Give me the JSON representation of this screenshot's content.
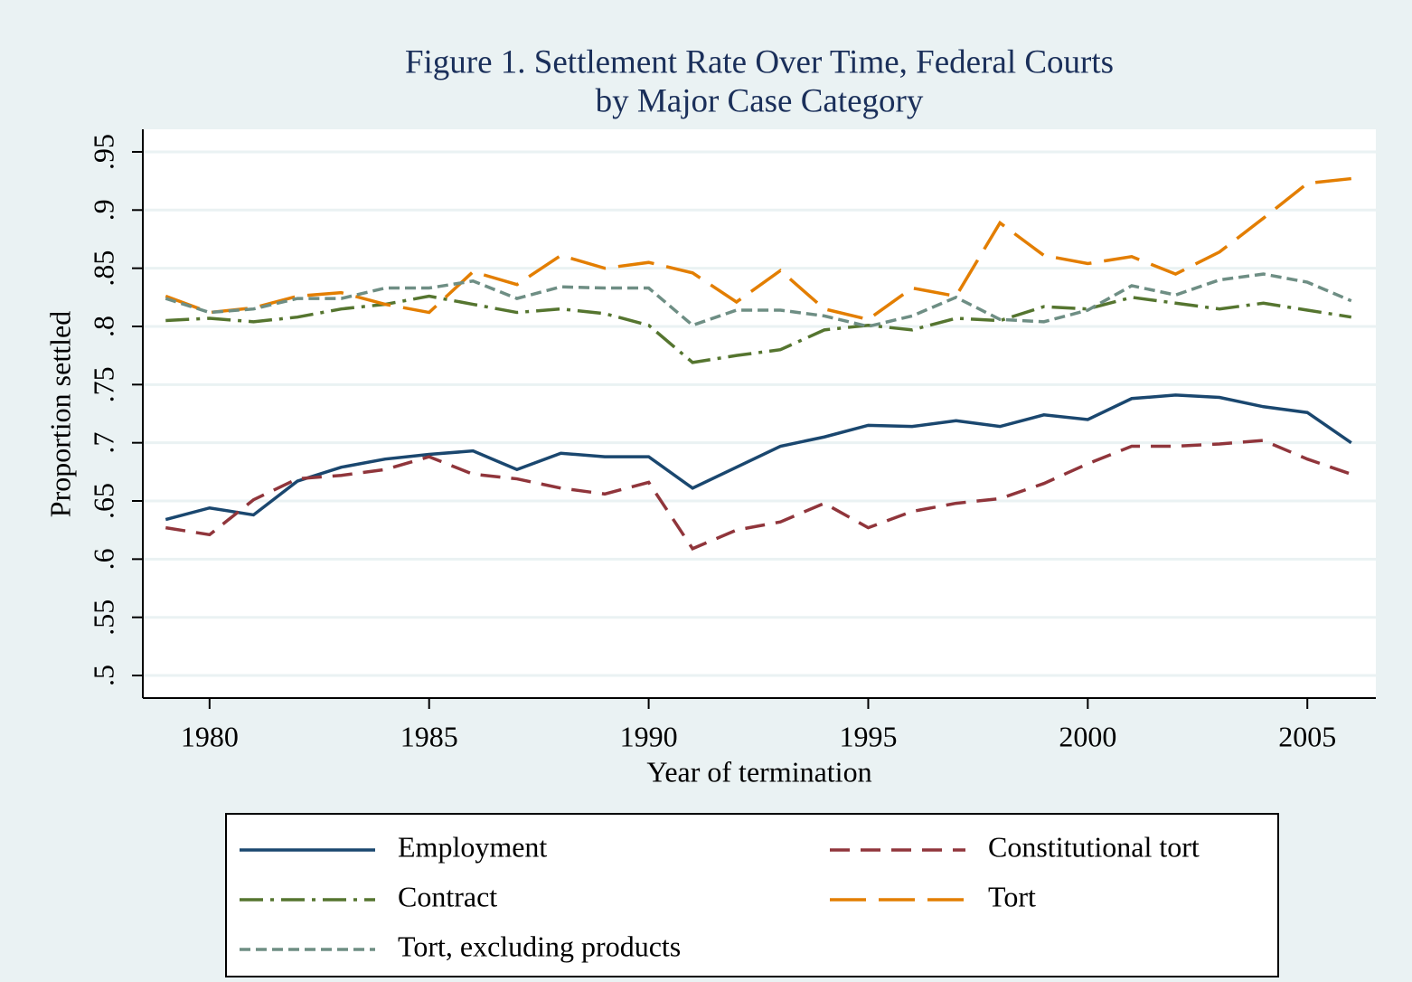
{
  "chart_data": {
    "type": "line",
    "title": "Figure 1. Settlement Rate Over Time, Federal Courts",
    "subtitle": "by Major Case Category",
    "x_label": "Year of termination",
    "y_label": "Proportion settled",
    "x": [
      1979,
      1980,
      1981,
      1982,
      1983,
      1984,
      1985,
      1986,
      1987,
      1988,
      1989,
      1990,
      1991,
      1992,
      1993,
      1994,
      1995,
      1996,
      1997,
      1998,
      1999,
      2000,
      2001,
      2002,
      2003,
      2004,
      2005,
      2006
    ],
    "series": [
      {
        "name": "Employment",
        "color": "#1a476f",
        "values": [
          0.634,
          0.644,
          0.638,
          0.667,
          0.679,
          0.686,
          0.69,
          0.693,
          0.677,
          0.691,
          0.688,
          0.688,
          0.661,
          0.679,
          0.697,
          0.705,
          0.715,
          0.714,
          0.719,
          0.714,
          0.724,
          0.72,
          0.738,
          0.741,
          0.739,
          0.731,
          0.726,
          0.7
        ]
      },
      {
        "name": "Constitutional tort",
        "color": "#90353b",
        "values": [
          0.627,
          0.621,
          0.651,
          0.669,
          0.672,
          0.677,
          0.688,
          0.673,
          0.669,
          0.661,
          0.656,
          0.666,
          0.609,
          0.625,
          0.632,
          0.648,
          0.627,
          0.641,
          0.648,
          0.652,
          0.665,
          0.682,
          0.697,
          0.697,
          0.699,
          0.702,
          0.686,
          0.673
        ]
      },
      {
        "name": "Contract",
        "color": "#55752f",
        "values": [
          0.805,
          0.807,
          0.804,
          0.808,
          0.815,
          0.819,
          0.826,
          0.819,
          0.812,
          0.815,
          0.811,
          0.801,
          0.769,
          0.775,
          0.78,
          0.797,
          0.801,
          0.797,
          0.807,
          0.805,
          0.817,
          0.815,
          0.825,
          0.82,
          0.815,
          0.82,
          0.814,
          0.808
        ]
      },
      {
        "name": "Tort",
        "color": "#e37e00",
        "values": [
          0.826,
          0.812,
          0.816,
          0.826,
          0.829,
          0.819,
          0.812,
          0.847,
          0.836,
          0.861,
          0.85,
          0.855,
          0.846,
          0.821,
          0.848,
          0.815,
          0.806,
          0.833,
          0.826,
          0.889,
          0.861,
          0.854,
          0.86,
          0.845,
          0.864,
          0.893,
          0.923,
          0.927
        ]
      },
      {
        "name": "Tort, excluding products",
        "color": "#6e8e84",
        "values": [
          0.824,
          0.812,
          0.815,
          0.824,
          0.824,
          0.833,
          0.833,
          0.839,
          0.824,
          0.834,
          0.833,
          0.833,
          0.801,
          0.814,
          0.814,
          0.809,
          0.8,
          0.809,
          0.825,
          0.806,
          0.804,
          0.814,
          0.835,
          0.827,
          0.84,
          0.845,
          0.838,
          0.822
        ]
      }
    ],
    "xlim": [
      1978.48,
      2006.56
    ],
    "xticks": [
      1980,
      1985,
      1990,
      1995,
      2000,
      2005
    ],
    "ylim": [
      0.4806,
      0.9694
    ],
    "yticks": [
      {
        "value": 0.5,
        "label": ".5"
      },
      {
        "value": 0.55,
        "label": ".55"
      },
      {
        "value": 0.6,
        "label": ".6"
      },
      {
        "value": 0.65,
        "label": ".65"
      },
      {
        "value": 0.7,
        "label": ".7"
      },
      {
        "value": 0.75,
        "label": ".75"
      },
      {
        "value": 0.8,
        "label": ".8"
      },
      {
        "value": 0.85,
        "label": ".85"
      },
      {
        "value": 0.9,
        "label": ".9"
      },
      {
        "value": 0.95,
        "label": ".95"
      }
    ],
    "grid": true,
    "legend": "bottom"
  }
}
